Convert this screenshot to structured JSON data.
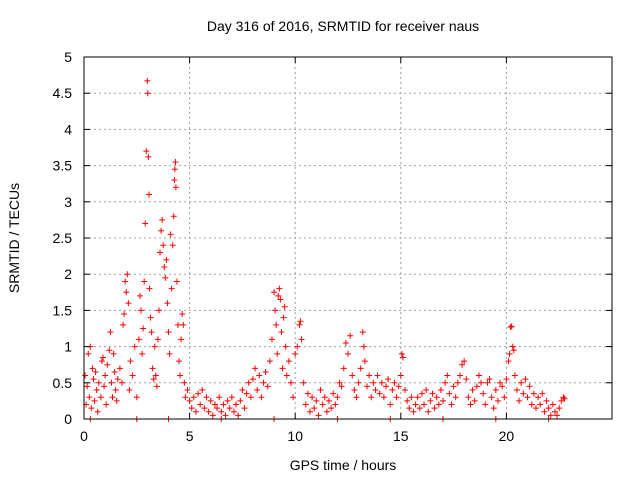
{
  "chart_data": {
    "type": "scatter",
    "title": "Day 316 of 2016, SRMTID for receiver naus",
    "xlabel": "GPS time / hours",
    "ylabel": "SRMTID / TECUs",
    "xlim": [
      0,
      25
    ],
    "ylim": [
      0,
      5
    ],
    "x_ticks": [
      0,
      5,
      10,
      15,
      20
    ],
    "x_tick_labels": [
      "0",
      "5",
      "10",
      "15",
      "20"
    ],
    "y_ticks": [
      0,
      0.5,
      1,
      1.5,
      2,
      2.5,
      3,
      3.5,
      4,
      4.5,
      5
    ],
    "y_tick_labels": [
      "0",
      "0.5",
      "1",
      "1.5",
      "2",
      "2.5",
      "3",
      "3.5",
      "4",
      "4.5",
      "5"
    ],
    "grid": true,
    "marker": "plus",
    "marker_color": "#ff0000",
    "series": [
      {
        "name": "SRMTID",
        "points": [
          [
            0.05,
            0.6
          ],
          [
            0.1,
            0.2
          ],
          [
            0.15,
            0.45
          ],
          [
            0.2,
            0.9
          ],
          [
            0.25,
            0.3
          ],
          [
            0.3,
            1.0
          ],
          [
            0.35,
            0.15
          ],
          [
            0.4,
            0.7
          ],
          [
            0.45,
            0.55
          ],
          [
            0.5,
            0.25
          ],
          [
            0.55,
            0.65
          ],
          [
            0.6,
            0.4
          ],
          [
            0.65,
            0.1
          ],
          [
            0.7,
            0.5
          ],
          [
            0.8,
            0.3
          ],
          [
            0.85,
            0.8
          ],
          [
            0.9,
            0.85
          ],
          [
            0.95,
            0.45
          ],
          [
            1.0,
            0.6
          ],
          [
            1.05,
            0.2
          ],
          [
            1.1,
            0.75
          ],
          [
            1.2,
            0.95
          ],
          [
            1.25,
            1.2
          ],
          [
            1.3,
            0.5
          ],
          [
            1.35,
            0.3
          ],
          [
            1.4,
            0.9
          ],
          [
            1.45,
            0.65
          ],
          [
            1.5,
            0.4
          ],
          [
            1.55,
            0.25
          ],
          [
            1.6,
            0.55
          ],
          [
            1.7,
            0.7
          ],
          [
            1.8,
            0.5
          ],
          [
            1.85,
            1.3
          ],
          [
            1.9,
            1.45
          ],
          [
            1.95,
            1.9
          ],
          [
            2.0,
            1.75
          ],
          [
            2.05,
            2.0
          ],
          [
            2.1,
            1.6
          ],
          [
            2.15,
            0.4
          ],
          [
            2.2,
            0.8
          ],
          [
            2.3,
            0.6
          ],
          [
            2.4,
            1.0
          ],
          [
            2.5,
            0.3
          ],
          [
            2.6,
            1.1
          ],
          [
            2.65,
            1.7
          ],
          [
            2.7,
            1.5
          ],
          [
            2.75,
            0.9
          ],
          [
            2.8,
            1.25
          ],
          [
            2.85,
            1.9
          ],
          [
            2.9,
            2.7
          ],
          [
            2.95,
            3.7
          ],
          [
            3.0,
            4.67
          ],
          [
            3.02,
            4.5
          ],
          [
            3.05,
            3.62
          ],
          [
            3.08,
            3.1
          ],
          [
            3.1,
            1.8
          ],
          [
            3.15,
            1.4
          ],
          [
            3.2,
            1.2
          ],
          [
            3.25,
            0.7
          ],
          [
            3.3,
            0.55
          ],
          [
            3.35,
            1.0
          ],
          [
            3.4,
            0.6
          ],
          [
            3.45,
            0.45
          ],
          [
            3.5,
            1.1
          ],
          [
            3.55,
            1.5
          ],
          [
            3.6,
            2.3
          ],
          [
            3.65,
            2.6
          ],
          [
            3.7,
            2.75
          ],
          [
            3.75,
            2.4
          ],
          [
            3.8,
            2.1
          ],
          [
            3.85,
            1.95
          ],
          [
            3.9,
            2.2
          ],
          [
            3.95,
            1.6
          ],
          [
            4.0,
            1.2
          ],
          [
            4.05,
            0.9
          ],
          [
            4.1,
            2.55
          ],
          [
            4.15,
            1.8
          ],
          [
            4.2,
            2.4
          ],
          [
            4.25,
            2.8
          ],
          [
            4.28,
            3.3
          ],
          [
            4.3,
            3.45
          ],
          [
            4.33,
            3.55
          ],
          [
            4.35,
            3.2
          ],
          [
            4.4,
            1.9
          ],
          [
            4.45,
            1.3
          ],
          [
            4.5,
            0.8
          ],
          [
            4.55,
            0.6
          ],
          [
            4.6,
            1.1
          ],
          [
            4.65,
            1.45
          ],
          [
            4.7,
            1.3
          ],
          [
            4.75,
            0.5
          ],
          [
            4.8,
            0.3
          ],
          [
            4.9,
            0.4
          ],
          [
            5.0,
            0.25
          ],
          [
            5.1,
            0.15
          ],
          [
            5.2,
            0.3
          ],
          [
            5.3,
            0.1
          ],
          [
            5.4,
            0.35
          ],
          [
            5.5,
            0.2
          ],
          [
            5.6,
            0.4
          ],
          [
            5.7,
            0.15
          ],
          [
            5.8,
            0.3
          ],
          [
            5.9,
            0.1
          ],
          [
            6.0,
            0.25
          ],
          [
            6.1,
            0.05
          ],
          [
            6.2,
            0.2
          ],
          [
            6.3,
            0.15
          ],
          [
            6.4,
            0.3
          ],
          [
            6.5,
            0.1
          ],
          [
            6.6,
            0.2
          ],
          [
            6.7,
            0.05
          ],
          [
            6.8,
            0.25
          ],
          [
            6.9,
            0.15
          ],
          [
            7.0,
            0.3
          ],
          [
            7.1,
            0.1
          ],
          [
            7.2,
            0.2
          ],
          [
            7.3,
            0.05
          ],
          [
            7.4,
            0.25
          ],
          [
            7.5,
            0.4
          ],
          [
            7.6,
            0.15
          ],
          [
            7.7,
            0.35
          ],
          [
            7.8,
            0.5
          ],
          [
            7.9,
            0.3
          ],
          [
            8.0,
            0.55
          ],
          [
            8.1,
            0.7
          ],
          [
            8.2,
            0.4
          ],
          [
            8.3,
            0.6
          ],
          [
            8.4,
            0.3
          ],
          [
            8.5,
            0.5
          ],
          [
            8.6,
            0.65
          ],
          [
            8.7,
            0.45
          ],
          [
            8.8,
            0.8
          ],
          [
            8.9,
            1.1
          ],
          [
            9.0,
            1.75
          ],
          [
            9.05,
            1.5
          ],
          [
            9.1,
            1.3
          ],
          [
            9.15,
            0.9
          ],
          [
            9.2,
            1.7
          ],
          [
            9.25,
            1.8
          ],
          [
            9.3,
            1.65
          ],
          [
            9.35,
            1.2
          ],
          [
            9.4,
            0.7
          ],
          [
            9.45,
            1.4
          ],
          [
            9.5,
            1.55
          ],
          [
            9.55,
            1.0
          ],
          [
            9.6,
            0.6
          ],
          [
            9.7,
            0.8
          ],
          [
            9.8,
            0.5
          ],
          [
            9.9,
            0.3
          ],
          [
            10.0,
            0.9
          ],
          [
            10.1,
            1.0
          ],
          [
            10.2,
            1.3
          ],
          [
            10.25,
            1.35
          ],
          [
            10.3,
            1.1
          ],
          [
            10.4,
            0.5
          ],
          [
            10.5,
            0.2
          ],
          [
            10.6,
            0.35
          ],
          [
            10.7,
            0.1
          ],
          [
            10.8,
            0.3
          ],
          [
            10.9,
            0.15
          ],
          [
            11.0,
            0.25
          ],
          [
            11.1,
            0.05
          ],
          [
            11.2,
            0.4
          ],
          [
            11.3,
            0.2
          ],
          [
            11.4,
            0.3
          ],
          [
            11.5,
            0.1
          ],
          [
            11.6,
            0.25
          ],
          [
            11.7,
            0.15
          ],
          [
            11.8,
            0.35
          ],
          [
            11.9,
            0.2
          ],
          [
            12.0,
            0.3
          ],
          [
            12.1,
            0.5
          ],
          [
            12.2,
            0.45
          ],
          [
            12.3,
            0.7
          ],
          [
            12.4,
            1.05
          ],
          [
            12.5,
            0.9
          ],
          [
            12.6,
            1.15
          ],
          [
            12.7,
            0.6
          ],
          [
            12.8,
            0.4
          ],
          [
            12.9,
            0.3
          ],
          [
            13.0,
            0.5
          ],
          [
            13.1,
            0.7
          ],
          [
            13.2,
            1.2
          ],
          [
            13.25,
            1.0
          ],
          [
            13.3,
            0.8
          ],
          [
            13.4,
            0.45
          ],
          [
            13.5,
            0.6
          ],
          [
            13.6,
            0.3
          ],
          [
            13.7,
            0.5
          ],
          [
            13.8,
            0.4
          ],
          [
            13.9,
            0.6
          ],
          [
            14.0,
            0.35
          ],
          [
            14.1,
            0.5
          ],
          [
            14.2,
            0.3
          ],
          [
            14.3,
            0.45
          ],
          [
            14.4,
            0.55
          ],
          [
            14.5,
            0.2
          ],
          [
            14.6,
            0.4
          ],
          [
            14.7,
            0.5
          ],
          [
            14.8,
            0.3
          ],
          [
            14.9,
            0.45
          ],
          [
            15.0,
            0.6
          ],
          [
            15.05,
            0.9
          ],
          [
            15.1,
            0.85
          ],
          [
            15.2,
            0.4
          ],
          [
            15.3,
            0.25
          ],
          [
            15.4,
            0.15
          ],
          [
            15.5,
            0.3
          ],
          [
            15.6,
            0.1
          ],
          [
            15.7,
            0.2
          ],
          [
            15.8,
            0.3
          ],
          [
            15.9,
            0.15
          ],
          [
            16.0,
            0.35
          ],
          [
            16.1,
            0.2
          ],
          [
            16.2,
            0.4
          ],
          [
            16.3,
            0.1
          ],
          [
            16.4,
            0.25
          ],
          [
            16.5,
            0.35
          ],
          [
            16.6,
            0.15
          ],
          [
            16.7,
            0.3
          ],
          [
            16.8,
            0.2
          ],
          [
            16.9,
            0.4
          ],
          [
            17.0,
            0.25
          ],
          [
            17.1,
            0.5
          ],
          [
            17.2,
            0.6
          ],
          [
            17.3,
            0.35
          ],
          [
            17.4,
            0.2
          ],
          [
            17.5,
            0.45
          ],
          [
            17.6,
            0.3
          ],
          [
            17.7,
            0.5
          ],
          [
            17.8,
            0.6
          ],
          [
            17.9,
            0.75
          ],
          [
            18.0,
            0.8
          ],
          [
            18.1,
            0.55
          ],
          [
            18.2,
            0.3
          ],
          [
            18.3,
            0.2
          ],
          [
            18.4,
            0.4
          ],
          [
            18.5,
            0.25
          ],
          [
            18.6,
            0.45
          ],
          [
            18.7,
            0.6
          ],
          [
            18.8,
            0.5
          ],
          [
            18.9,
            0.35
          ],
          [
            19.0,
            0.2
          ],
          [
            19.1,
            0.5
          ],
          [
            19.2,
            0.55
          ],
          [
            19.3,
            0.3
          ],
          [
            19.4,
            0.15
          ],
          [
            19.5,
            0.4
          ],
          [
            19.6,
            0.25
          ],
          [
            19.7,
            0.5
          ],
          [
            19.8,
            0.45
          ],
          [
            19.9,
            0.3
          ],
          [
            20.0,
            0.55
          ],
          [
            20.1,
            0.8
          ],
          [
            20.15,
            0.9
          ],
          [
            20.2,
            1.27
          ],
          [
            20.25,
            1.28
          ],
          [
            20.3,
            1.0
          ],
          [
            20.35,
            0.95
          ],
          [
            20.4,
            0.6
          ],
          [
            20.5,
            0.4
          ],
          [
            20.6,
            0.25
          ],
          [
            20.7,
            0.5
          ],
          [
            20.8,
            0.35
          ],
          [
            20.9,
            0.55
          ],
          [
            21.0,
            0.3
          ],
          [
            21.1,
            0.45
          ],
          [
            21.2,
            0.2
          ],
          [
            21.3,
            0.35
          ],
          [
            21.4,
            0.15
          ],
          [
            21.5,
            0.3
          ],
          [
            21.6,
            0.2
          ],
          [
            21.7,
            0.35
          ],
          [
            21.8,
            0.1
          ],
          [
            21.9,
            0.25
          ],
          [
            22.0,
            0.15
          ],
          [
            22.1,
            0.05
          ],
          [
            22.2,
            0.2
          ],
          [
            22.3,
            0.1
          ],
          [
            22.4,
            0.05
          ],
          [
            22.5,
            0.15
          ],
          [
            22.6,
            0.25
          ],
          [
            22.7,
            0.3
          ],
          [
            22.75,
            0.28
          ],
          [
            0.3,
            0.0
          ],
          [
            2.5,
            0.0
          ],
          [
            4.0,
            0.0
          ],
          [
            6.5,
            0.0
          ],
          [
            9.0,
            0.0
          ],
          [
            12.0,
            0.0
          ],
          [
            14.5,
            0.0
          ],
          [
            17.0,
            0.0
          ],
          [
            19.5,
            0.0
          ],
          [
            22.0,
            0.0
          ]
        ]
      }
    ]
  }
}
